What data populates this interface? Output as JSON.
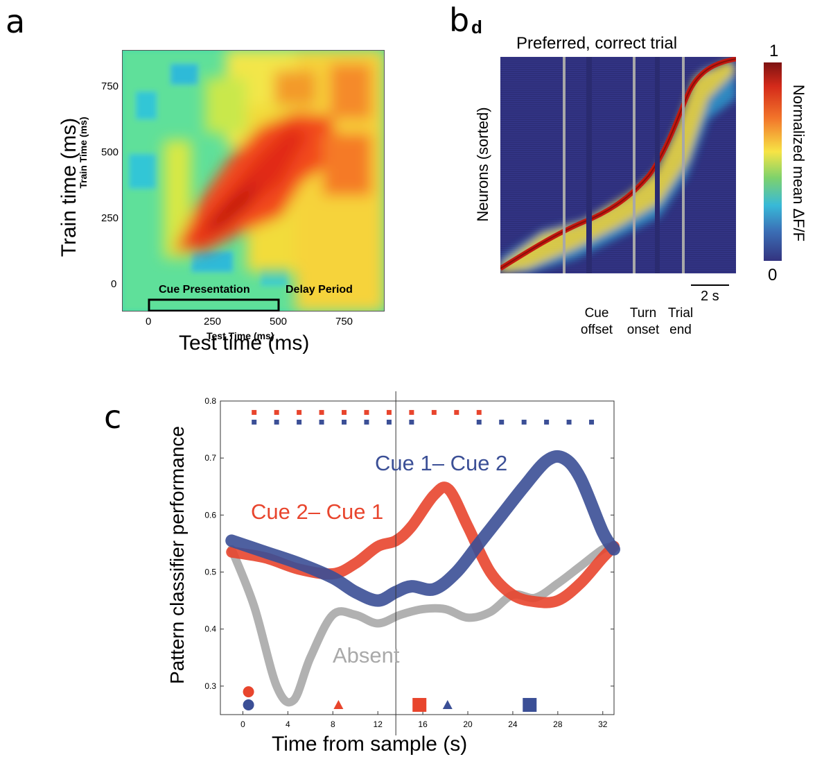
{
  "panel_a": {
    "label": "a",
    "x_title": "Test time (ms)",
    "x_title_overlay": "Test Time (ms)",
    "y_title": "Train time (ms)",
    "y_title_overlay": "Train Time (ms)",
    "x_ticks": [
      "0",
      "250",
      "500",
      "750"
    ],
    "y_ticks": [
      "0",
      "250",
      "500",
      "750"
    ],
    "annotation_cue": "Cue Presentation",
    "annotation_delay": "Delay Period"
  },
  "panel_b": {
    "label": "b",
    "sublabel": "d",
    "title": "Preferred, correct trial",
    "y_title": "Neurons (sorted)",
    "colorbar_title": "Normalized mean ΔF/F",
    "colorbar_max": "1",
    "colorbar_min": "0",
    "scalebar": "2 s",
    "events": [
      {
        "line1": "Cue",
        "line2": "offset"
      },
      {
        "line1": "Turn",
        "line2": "onset"
      },
      {
        "line1": "Trial",
        "line2": "end"
      }
    ]
  },
  "panel_c": {
    "label": "c",
    "x_title": "Time from sample (s)",
    "y_title": "Pattern classifier performance",
    "x_ticks": [
      "0",
      "4",
      "8",
      "12",
      "16",
      "20",
      "24",
      "28",
      "32"
    ],
    "y_ticks": [
      "0.3",
      "0.4",
      "0.5",
      "0.6",
      "0.7",
      "0.8"
    ],
    "label_cue2": "Cue 2– Cue 1",
    "label_cue1": "Cue 1– Cue 2",
    "label_absent": "Absent"
  },
  "colors": {
    "red": "#e8452d",
    "blue": "#3b4f96",
    "gray": "#a9a9a9"
  },
  "chart_data": [
    {
      "type": "heatmap",
      "panel": "a",
      "xlabel": "Test time (ms)",
      "ylabel": "Train time (ms)",
      "xlim": [
        -100,
        900
      ],
      "ylim": [
        -100,
        900
      ]
    },
    {
      "type": "heatmap",
      "panel": "b",
      "title": "Preferred, correct trial",
      "ylabel": "Neurons (sorted)",
      "colorbar_range": [
        0,
        1
      ]
    },
    {
      "type": "line",
      "panel": "c",
      "xlabel": "Time from sample (s)",
      "ylabel": "Pattern classifier performance",
      "xlim": [
        -2,
        33
      ],
      "ylim": [
        0.25,
        0.8
      ],
      "series": [
        {
          "name": "Cue 2– Cue 1",
          "x": [
            -1,
            2,
            5,
            8,
            10,
            12,
            13.6,
            15,
            17,
            18.3,
            20,
            22,
            24,
            26,
            28,
            30,
            32,
            33
          ],
          "y": [
            0.535,
            0.525,
            0.505,
            0.497,
            0.515,
            0.545,
            0.555,
            0.58,
            0.635,
            0.645,
            0.58,
            0.5,
            0.46,
            0.448,
            0.45,
            0.48,
            0.525,
            0.545
          ]
        },
        {
          "name": "Cue 1– Cue 2",
          "x": [
            -1,
            2,
            5,
            8,
            10,
            12,
            13.6,
            15,
            17,
            19,
            21,
            23,
            25,
            27,
            28.5,
            30,
            32,
            33
          ],
          "y": [
            0.555,
            0.535,
            0.515,
            0.49,
            0.465,
            0.45,
            0.465,
            0.475,
            0.47,
            0.5,
            0.55,
            0.6,
            0.65,
            0.695,
            0.7,
            0.665,
            0.57,
            0.54
          ]
        },
        {
          "name": "Absent",
          "x": [
            -1,
            1,
            3,
            4.5,
            6,
            8,
            10,
            12,
            14,
            16,
            18,
            20,
            22,
            24,
            26,
            28,
            30,
            32,
            33
          ],
          "y": [
            0.54,
            0.44,
            0.3,
            0.275,
            0.35,
            0.425,
            0.425,
            0.41,
            0.425,
            0.435,
            0.435,
            0.42,
            0.43,
            0.46,
            0.455,
            0.48,
            0.51,
            0.54,
            0.545
          ]
        }
      ],
      "significance_rows": [
        {
          "color": "red",
          "x": [
            1,
            3,
            5,
            7,
            9,
            11,
            13,
            15,
            17,
            19,
            21
          ]
        },
        {
          "color": "blue",
          "x": [
            1,
            3,
            5,
            7,
            9,
            11,
            13,
            15,
            21,
            23,
            25,
            27,
            29,
            31
          ]
        }
      ],
      "event_markers": [
        {
          "shape": "circle",
          "color": "red",
          "x": 0.5
        },
        {
          "shape": "circle",
          "color": "blue",
          "x": 0.5
        },
        {
          "shape": "triangle",
          "color": "red",
          "x": 8.5
        },
        {
          "shape": "square",
          "color": "red",
          "x": 15.7
        },
        {
          "shape": "triangle",
          "color": "blue",
          "x": 18.2
        },
        {
          "shape": "square",
          "color": "blue",
          "x": 25.5
        }
      ],
      "vline_x": 13.6
    }
  ]
}
